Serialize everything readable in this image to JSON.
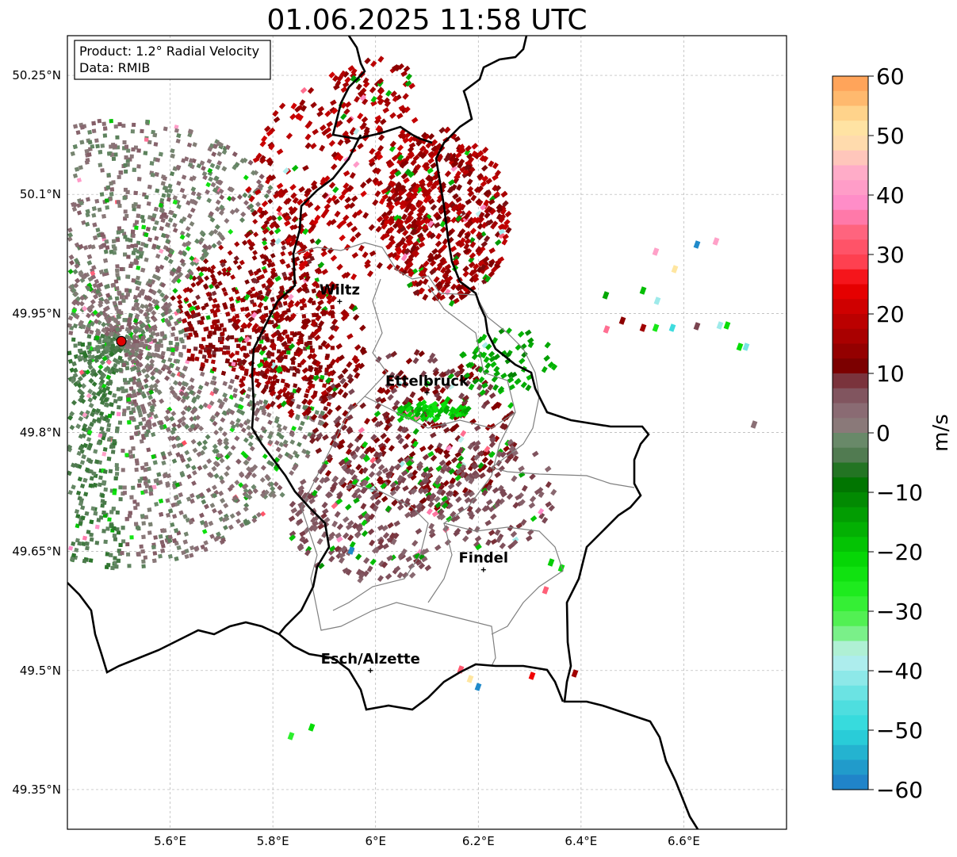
{
  "title": "01.06.2025 11:58 UTC",
  "info_box": {
    "product": "Product: 1.2° Radial Velocity",
    "data": "Data: RMIB"
  },
  "map": {
    "lon_range": [
      5.4,
      6.8
    ],
    "lat_range": [
      49.3,
      50.3
    ],
    "lon_ticks": [
      "5.6°E",
      "5.8°E",
      "6°E",
      "6.2°E",
      "6.4°E",
      "6.6°E"
    ],
    "lat_ticks": [
      "50.25°N",
      "50.1°N",
      "49.95°N",
      "49.8°N",
      "49.65°N",
      "49.5°N",
      "49.35°N"
    ],
    "grid": true,
    "cities": [
      {
        "name": "Wiltz",
        "lon": 5.93,
        "lat": 49.965
      },
      {
        "name": "Ettelbruck",
        "lon": 6.1,
        "lat": 49.85
      },
      {
        "name": "Findel",
        "lon": 6.21,
        "lat": 49.627
      },
      {
        "name": "Esch/Alzette",
        "lon": 5.99,
        "lat": 49.5
      }
    ],
    "radar_site": {
      "lon": 5.505,
      "lat": 49.915
    }
  },
  "colorbar": {
    "unit": "m/s",
    "ticks": [
      "60",
      "50",
      "40",
      "30",
      "20",
      "10",
      "0",
      "−10",
      "−20",
      "−30",
      "−40",
      "−50",
      "−60"
    ],
    "range": [
      -60,
      60
    ]
  },
  "colors": {
    "border_national": "#000000",
    "border_canton": "#808080",
    "radar_site": "#e00000"
  }
}
